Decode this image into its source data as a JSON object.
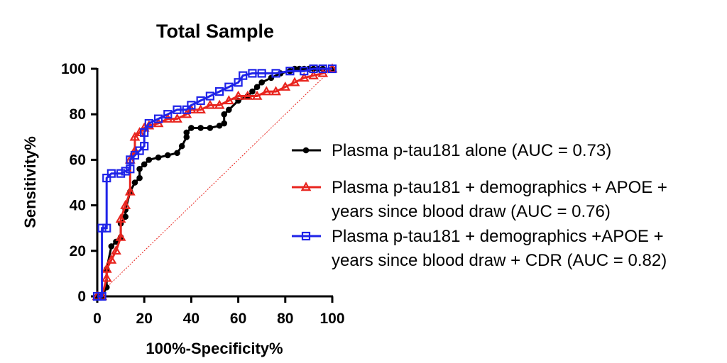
{
  "chart_data": {
    "type": "line",
    "title": "Total Sample",
    "xlabel": "100%-Specificity%",
    "ylabel": "Sensitivity%",
    "xlim": [
      0,
      100
    ],
    "ylim": [
      0,
      100
    ],
    "xticks": [
      "0",
      "20",
      "40",
      "60",
      "80",
      "100"
    ],
    "yticks": [
      "0",
      "20",
      "40",
      "60",
      "80",
      "100"
    ],
    "grid": false,
    "legend_position": "right",
    "reference_line": {
      "x": [
        0,
        100
      ],
      "y": [
        0,
        100
      ],
      "color": "#e8251f",
      "style": "dotted"
    },
    "series": [
      {
        "name": "Plasma p-tau181 alone (AUC = 0.73)",
        "color": "#000000",
        "marker": "circle",
        "x": [
          0,
          2,
          4,
          4,
          6,
          8,
          10,
          10,
          12,
          12,
          14,
          16,
          18,
          18,
          20,
          22,
          26,
          30,
          34,
          36,
          38,
          38,
          40,
          44,
          48,
          52,
          54,
          54,
          56,
          60,
          64,
          66,
          68,
          70,
          74,
          78,
          82,
          84,
          86,
          88,
          90,
          92,
          94,
          96,
          100
        ],
        "y": [
          0,
          0,
          4,
          12,
          22,
          24,
          26,
          32,
          35,
          38,
          46,
          50,
          52,
          56,
          58,
          60,
          61,
          62,
          63,
          66,
          70,
          72,
          74,
          74,
          74,
          75,
          76,
          80,
          82,
          86,
          88,
          90,
          92,
          94,
          96,
          98,
          99,
          100,
          100,
          100,
          100,
          100,
          100,
          100,
          100
        ]
      },
      {
        "name": "Plasma p-tau181 + demographics + APOE + years since blood draw (AUC = 0.76)",
        "color": "#e8251f",
        "marker": "triangle",
        "x": [
          0,
          2,
          4,
          4,
          6,
          8,
          10,
          10,
          12,
          14,
          14,
          16,
          16,
          18,
          20,
          22,
          26,
          30,
          34,
          38,
          40,
          44,
          48,
          52,
          56,
          60,
          64,
          68,
          72,
          76,
          80,
          84,
          88,
          92,
          96,
          100
        ],
        "y": [
          0,
          0,
          8,
          12,
          16,
          20,
          26,
          34,
          40,
          46,
          60,
          64,
          70,
          72,
          74,
          75,
          76,
          78,
          78,
          80,
          82,
          82,
          84,
          84,
          86,
          88,
          88,
          88,
          90,
          90,
          92,
          94,
          96,
          97,
          98,
          100
        ]
      },
      {
        "name": "Plasma p-tau181 + demographics +APOE + years since blood draw + CDR (AUC = 0.82)",
        "color": "#1f23e8",
        "marker": "square",
        "x": [
          0,
          2,
          2,
          4,
          4,
          6,
          10,
          12,
          14,
          14,
          16,
          18,
          20,
          20,
          22,
          26,
          30,
          34,
          38,
          40,
          44,
          48,
          52,
          56,
          60,
          62,
          66,
          70,
          76,
          82,
          88,
          92,
          96,
          100
        ],
        "y": [
          0,
          0,
          30,
          30,
          52,
          54,
          54,
          55,
          56,
          60,
          62,
          64,
          66,
          72,
          76,
          78,
          80,
          82,
          82,
          84,
          86,
          88,
          90,
          92,
          94,
          97,
          98,
          98,
          98,
          99,
          99,
          100,
          100,
          100
        ]
      }
    ]
  }
}
